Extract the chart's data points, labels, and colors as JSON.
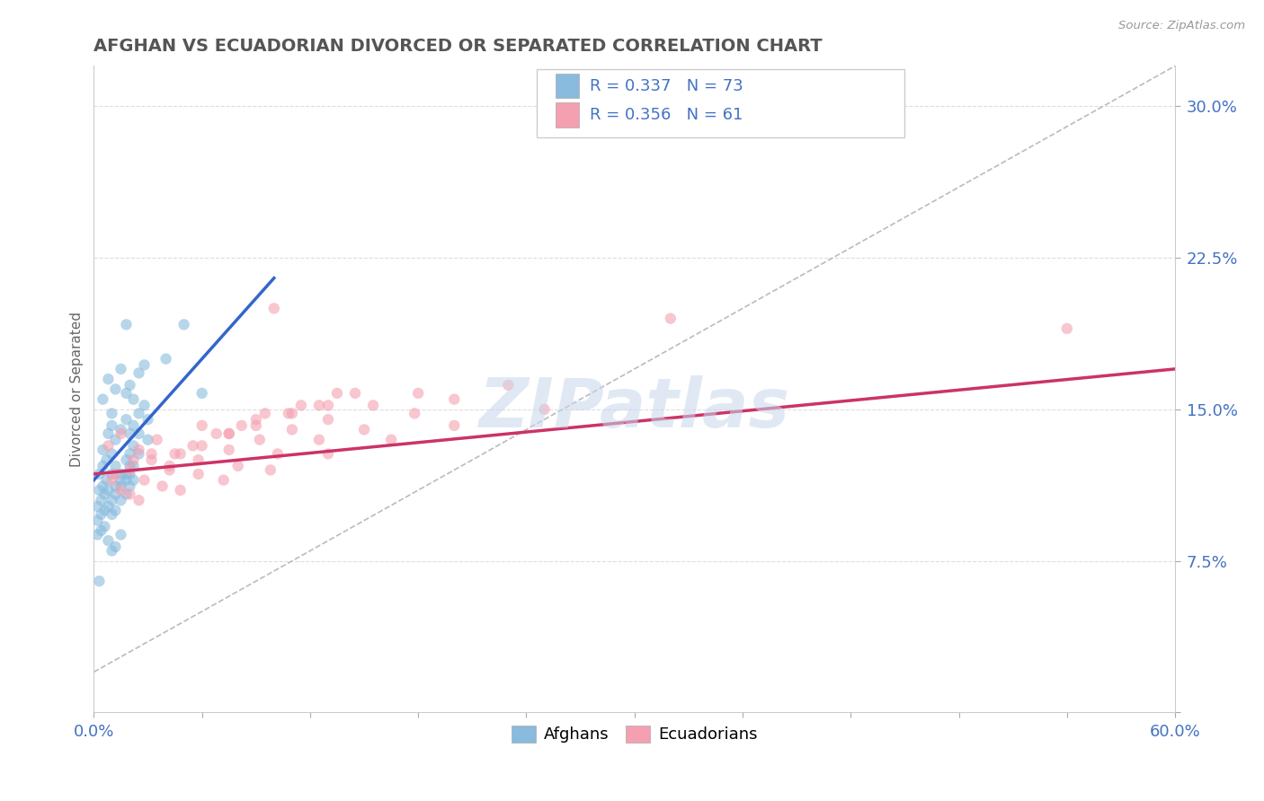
{
  "title": "AFGHAN VS ECUADORIAN DIVORCED OR SEPARATED CORRELATION CHART",
  "source": "Source: ZipAtlas.com",
  "ylabel": "Divorced or Separated",
  "xlim": [
    0.0,
    0.6
  ],
  "ylim": [
    0.0,
    0.32
  ],
  "xticks": [
    0.0,
    0.06,
    0.12,
    0.18,
    0.24,
    0.3,
    0.36,
    0.42,
    0.48,
    0.54,
    0.6
  ],
  "yticks": [
    0.0,
    0.075,
    0.15,
    0.225,
    0.3
  ],
  "ytick_labels": [
    "",
    "7.5%",
    "15.0%",
    "22.5%",
    "30.0%"
  ],
  "xtick_labels": [
    "0.0%",
    "",
    "",
    "",
    "",
    "",
    "",
    "",
    "",
    "",
    "60.0%"
  ],
  "watermark": "ZIPatlas",
  "afghan_color": "#88bbdd",
  "ecuadorian_color": "#f4a0b0",
  "afghan_line_color": "#3366cc",
  "ecuadorian_line_color": "#cc3366",
  "dashed_line_color": "#bbbbbb",
  "legend_text_color": "#4472c4",
  "title_color": "#555555",
  "R_afghan": 0.337,
  "N_afghan": 73,
  "R_ecuadorian": 0.356,
  "N_ecuadorian": 61,
  "background_color": "#ffffff",
  "plot_bg_color": "#ffffff",
  "grid_color": "#dddddd",
  "afghan_line_x0": 0.0,
  "afghan_line_y0": 0.115,
  "afghan_line_x1": 0.1,
  "afghan_line_y1": 0.215,
  "ecuadorian_line_x0": 0.0,
  "ecuadorian_line_y0": 0.118,
  "ecuadorian_line_x1": 0.6,
  "ecuadorian_line_y1": 0.17
}
